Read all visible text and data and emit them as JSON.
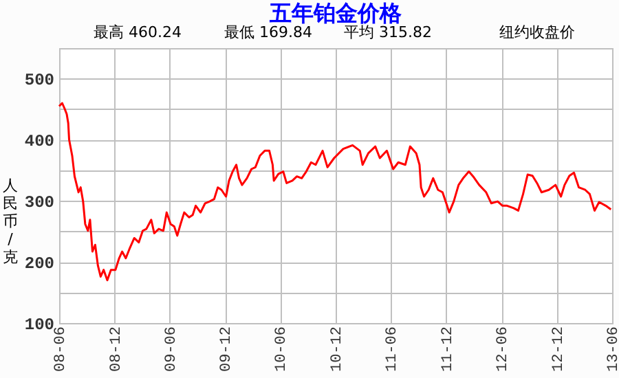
{
  "chart_data": {
    "type": "line",
    "title": "五年铂金价格",
    "ylabel": "人民币/克",
    "annotations": [
      "最高 460.24",
      "最低 169.84",
      "平均 315.82",
      "纽约收盘价"
    ],
    "x": [
      "2008-06-01",
      "2008-06-11",
      "2008-06-19",
      "2008-06-26",
      "2008-07-01",
      "2008-07-04",
      "2008-07-14",
      "2008-07-22",
      "2008-08-04",
      "2008-08-11",
      "2008-08-19",
      "2008-08-26",
      "2008-09-04",
      "2008-09-11",
      "2008-09-19",
      "2008-09-28",
      "2008-10-07",
      "2008-10-16",
      "2008-10-26",
      "2008-11-07",
      "2008-11-19",
      "2008-12-04",
      "2008-12-16",
      "2008-12-26",
      "2009-01-07",
      "2009-01-19",
      "2009-02-04",
      "2009-02-19",
      "2009-03-04",
      "2009-03-16",
      "2009-04-01",
      "2009-04-11",
      "2009-04-26",
      "2009-05-11",
      "2009-05-22",
      "2009-06-04",
      "2009-06-16",
      "2009-06-26",
      "2009-07-07",
      "2009-07-19",
      "2009-08-04",
      "2009-08-16",
      "2009-08-26",
      "2009-09-11",
      "2009-09-26",
      "2009-10-11",
      "2009-10-26",
      "2009-11-07",
      "2009-11-19",
      "2009-12-04",
      "2009-12-14",
      "2009-12-26",
      "2010-01-07",
      "2010-01-16",
      "2010-01-26",
      "2010-02-11",
      "2010-02-26",
      "2010-03-11",
      "2010-03-26",
      "2010-04-11",
      "2010-04-26",
      "2010-05-07",
      "2010-05-11",
      "2010-05-26",
      "2010-06-11",
      "2010-06-22",
      "2010-07-11",
      "2010-07-26",
      "2010-08-11",
      "2010-08-26",
      "2010-09-11",
      "2010-09-26",
      "2010-10-19",
      "2010-11-04",
      "2010-11-26",
      "2010-12-26",
      "2011-01-26",
      "2011-02-19",
      "2011-02-28",
      "2011-03-19",
      "2011-04-11",
      "2011-04-26",
      "2011-05-19",
      "2011-06-09",
      "2011-06-26",
      "2011-07-19",
      "2011-08-04",
      "2011-08-24",
      "2011-09-04",
      "2011-09-09",
      "2011-09-19",
      "2011-10-04",
      "2011-10-19",
      "2011-11-04",
      "2011-11-19",
      "2011-12-04",
      "2011-12-11",
      "2011-12-26",
      "2012-01-11",
      "2012-01-26",
      "2012-02-14",
      "2012-02-28",
      "2012-03-19",
      "2012-04-11",
      "2012-04-28",
      "2012-05-19",
      "2012-06-04",
      "2012-06-19",
      "2012-07-11",
      "2012-07-26",
      "2012-08-11",
      "2012-08-26",
      "2012-09-11",
      "2012-09-26",
      "2012-10-11",
      "2012-11-04",
      "2012-11-26",
      "2012-12-14",
      "2012-12-26",
      "2013-01-11",
      "2013-01-26",
      "2013-02-11",
      "2013-03-04",
      "2013-03-19",
      "2013-04-04",
      "2013-04-19",
      "2013-05-11",
      "2013-05-28"
    ],
    "series": [
      {
        "color": "#ff0000",
        "values": [
          455,
          460,
          451,
          442,
          427,
          400,
          374,
          340,
          314,
          322,
          299,
          262,
          251,
          269,
          217,
          228,
          194,
          176,
          187,
          170,
          187,
          187,
          206,
          217,
          206,
          221,
          239,
          232,
          251,
          254,
          269,
          247,
          254,
          251,
          281,
          262,
          258,
          243,
          262,
          281,
          273,
          277,
          292,
          281,
          296,
          299,
          303,
          322,
          318,
          307,
          333,
          348,
          359,
          337,
          326,
          337,
          352,
          355,
          374,
          382,
          382,
          359,
          333,
          344,
          348,
          329,
          333,
          340,
          337,
          348,
          363,
          359,
          382,
          355,
          370,
          385,
          391,
          382,
          359,
          378,
          389,
          370,
          382,
          352,
          363,
          359,
          389,
          378,
          359,
          322,
          307,
          318,
          337,
          318,
          314,
          292,
          281,
          299,
          326,
          337,
          348,
          340,
          326,
          314,
          296,
          299,
          292,
          292,
          288,
          284,
          311,
          343,
          341,
          329,
          314,
          318,
          326,
          307,
          326,
          341,
          346,
          322,
          318,
          311,
          284,
          298,
          292,
          286
        ]
      }
    ],
    "xlim": [
      "2008-06",
      "2013-06"
    ],
    "xticks": [
      {
        "value": "2008-06",
        "label": "08-06"
      },
      {
        "value": "2008-12",
        "label": "08-12"
      },
      {
        "value": "2009-06",
        "label": "09-06"
      },
      {
        "value": "2009-12",
        "label": "09-12"
      },
      {
        "value": "2010-06",
        "label": "10-06"
      },
      {
        "value": "2010-12",
        "label": "10-12"
      },
      {
        "value": "2011-06",
        "label": "11-06"
      },
      {
        "value": "2011-12",
        "label": "11-12"
      },
      {
        "value": "2012-06",
        "label": "12-06"
      },
      {
        "value": "2012-12",
        "label": "12-12"
      },
      {
        "value": "2013-06",
        "label": "13-06"
      }
    ],
    "ylim": [
      100,
      550
    ],
    "yticks": [
      100,
      {
        "value": 150,
        "label": null
      },
      200,
      {
        "value": 250,
        "label": null
      },
      300,
      {
        "value": 350,
        "label": null
      },
      400,
      {
        "value": 450,
        "label": null
      },
      500
    ],
    "grid": true,
    "line_style": "solid",
    "marker": "none"
  }
}
